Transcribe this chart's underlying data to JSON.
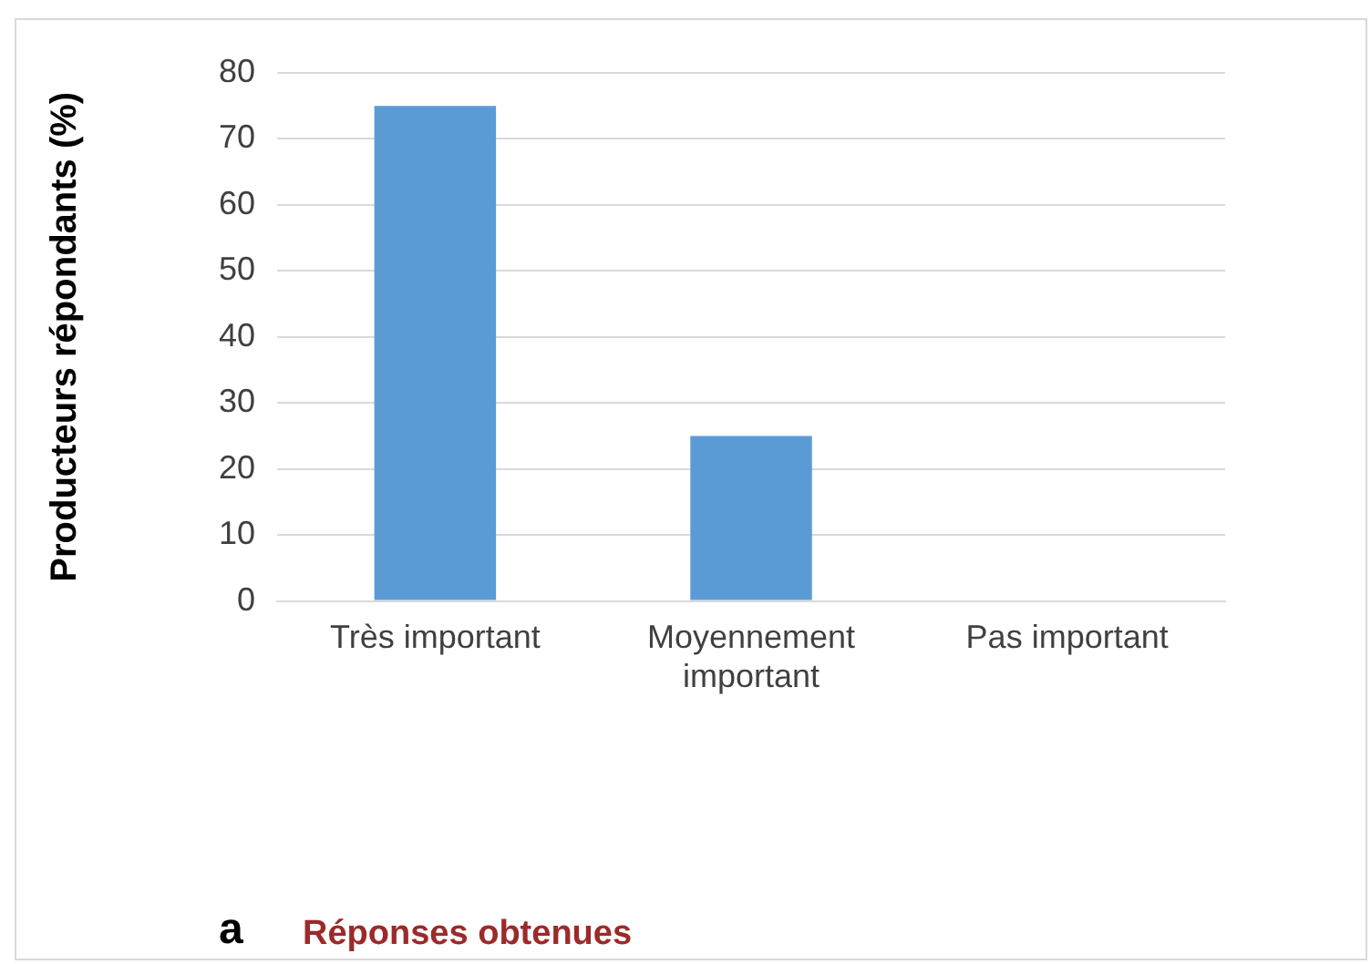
{
  "chart_data": {
    "type": "bar",
    "categories": [
      "Très important",
      "Moyennement important",
      "Pas important"
    ],
    "values": [
      75,
      25,
      0
    ],
    "color": "#5b9bd5",
    "ylim": [
      0,
      80
    ],
    "yticks": [
      0,
      10,
      20,
      30,
      40,
      50,
      60,
      70,
      80
    ],
    "grid": "y",
    "ylabel": "Producteurs répondants (%)",
    "annotations": [
      "a",
      "Réponses obtenues"
    ]
  }
}
